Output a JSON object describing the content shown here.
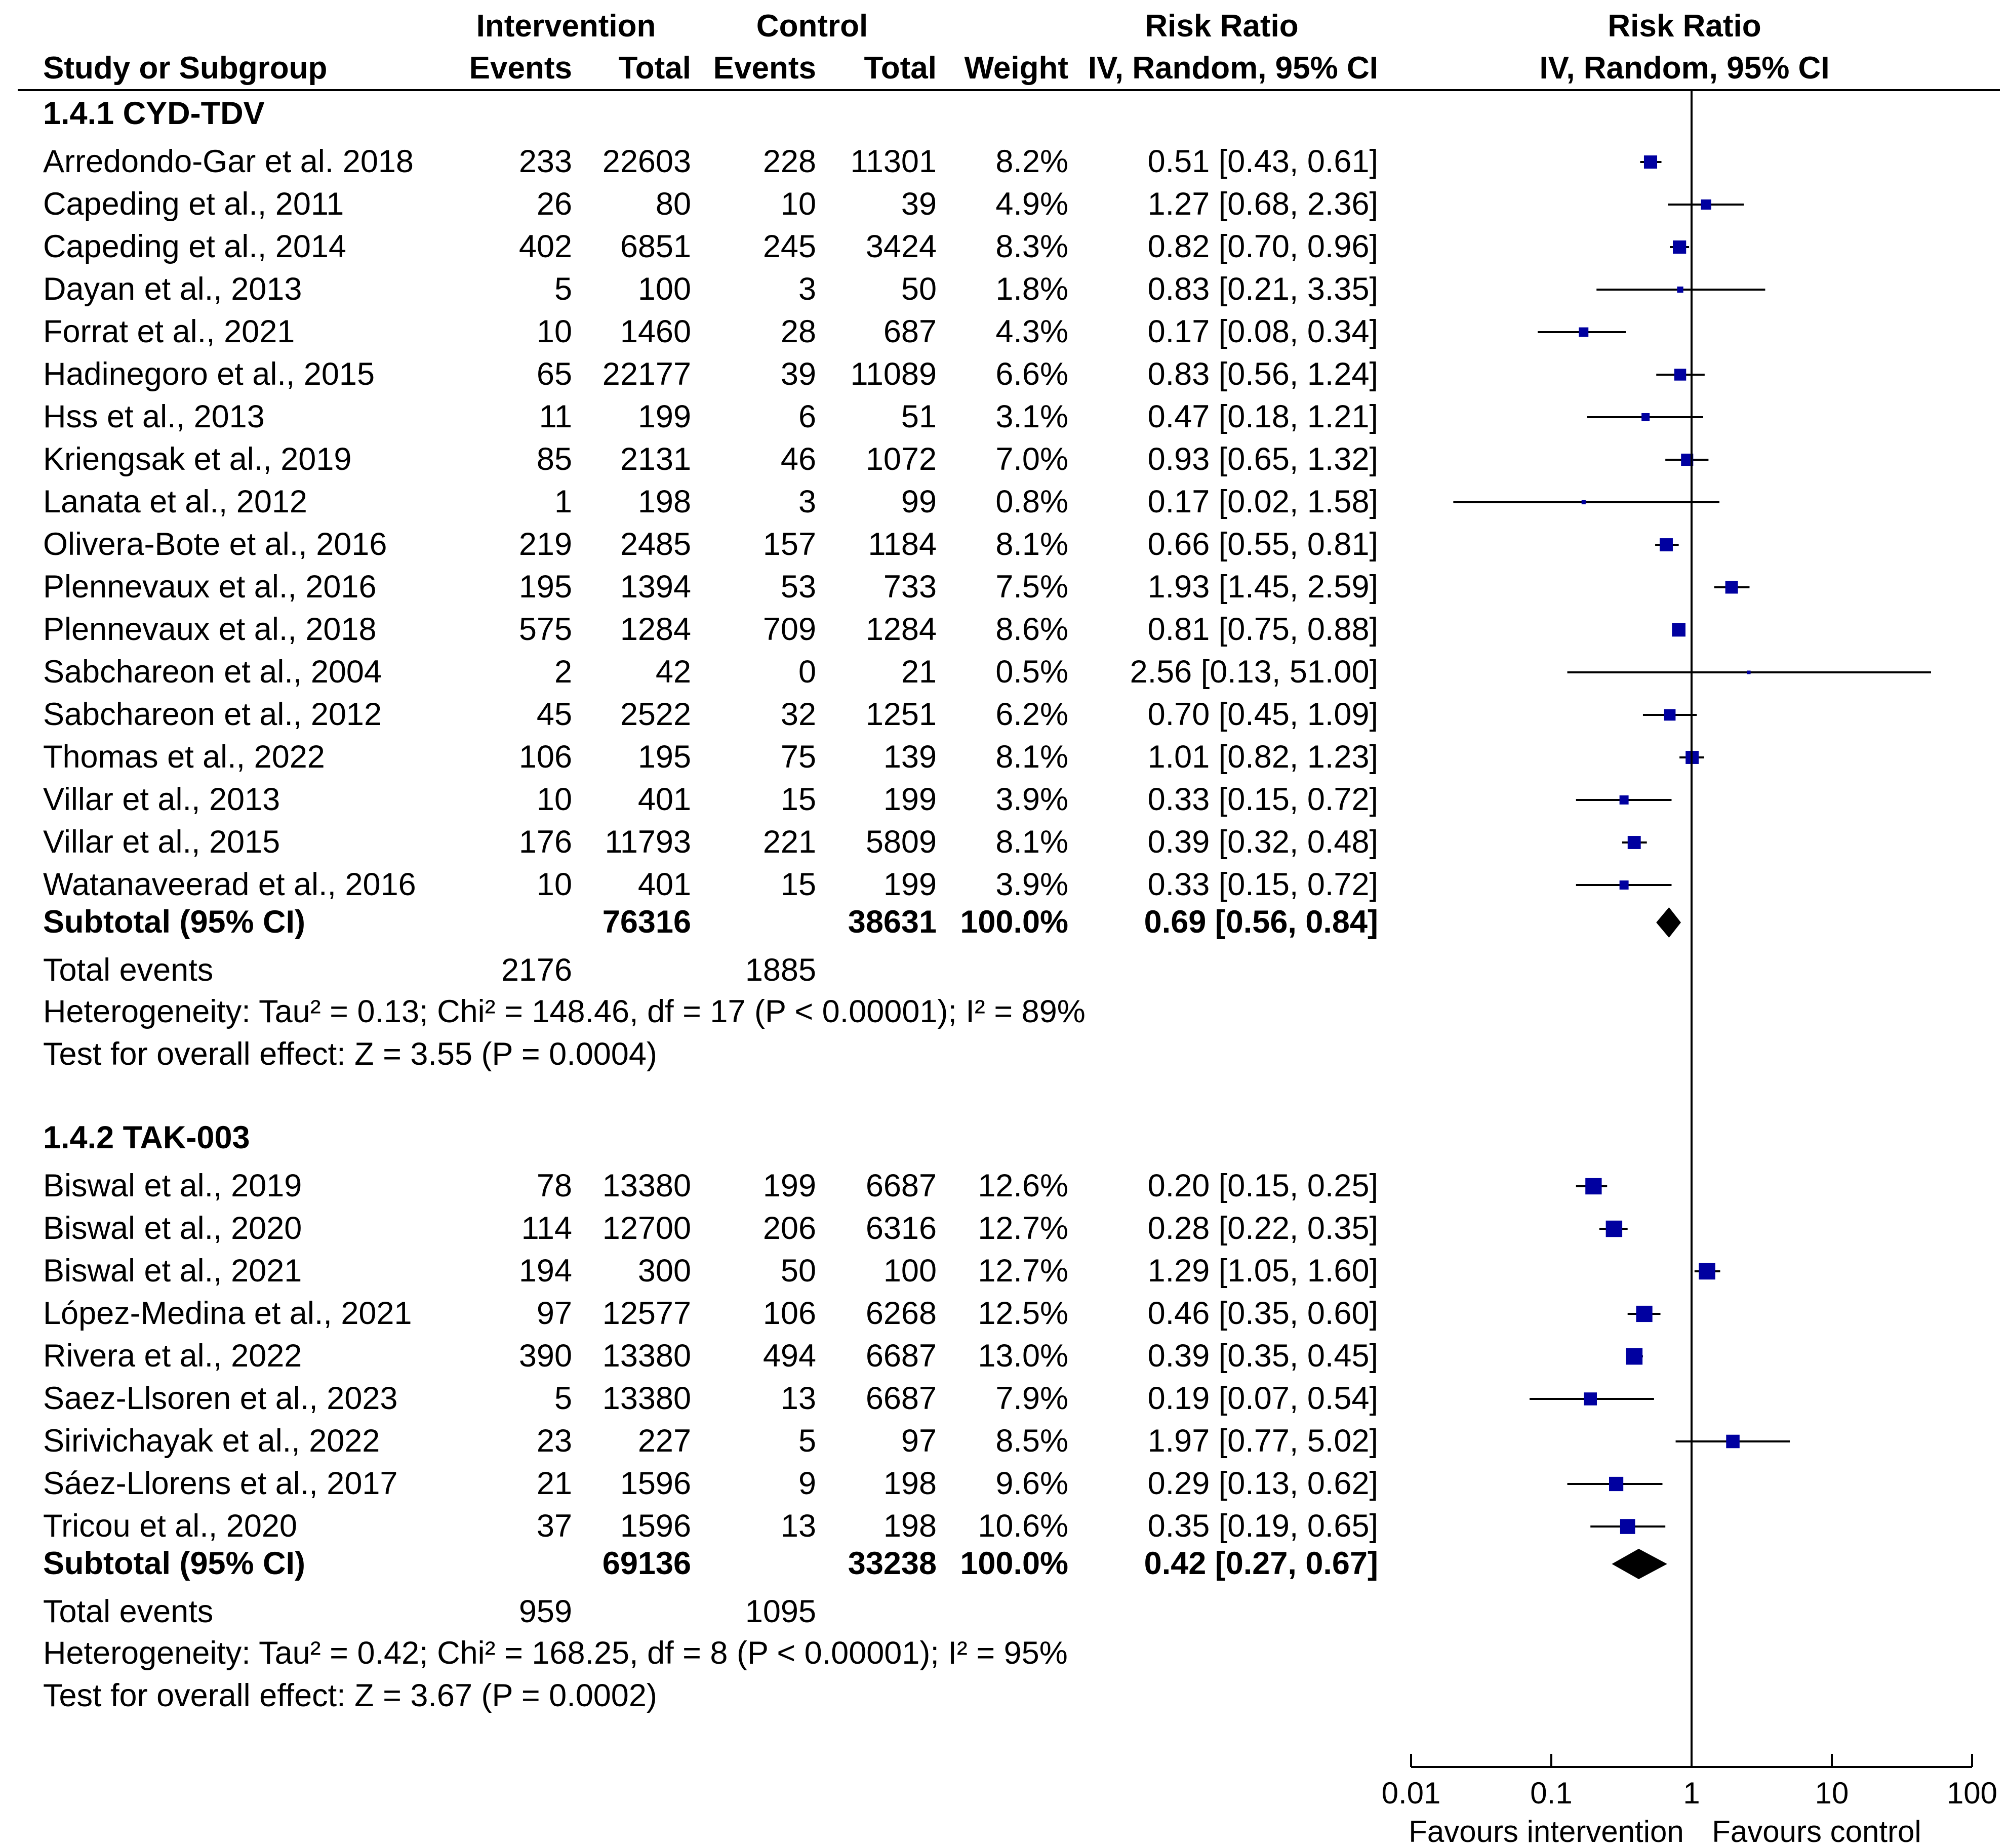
{
  "chart_data": {
    "type": "forest",
    "scale": "log",
    "xlim": [
      0.01,
      100
    ],
    "ticks": [
      0.01,
      0.1,
      1,
      10,
      100
    ],
    "tick_labels": [
      "0.01",
      "0.1",
      "1",
      "10",
      "100"
    ],
    "axis_left_label": "Favours intervention",
    "axis_right_label": "Favours control",
    "headers": {
      "group_intervention": "Intervention",
      "group_control": "Control",
      "risk_ratio": "Risk Ratio",
      "risk_ratio_plot": "Risk Ratio",
      "study": "Study or Subgroup",
      "events": "Events",
      "total": "Total",
      "events2": "Events",
      "total2": "Total",
      "weight": "Weight",
      "method": "IV, Random, 95% CI",
      "method_plot": "IV, Random, 95% CI"
    },
    "subgroups": [
      {
        "title": "1.4.1 CYD-TDV",
        "studies": [
          {
            "name": "Arredondo-Gar et al. 2018",
            "ie": "233",
            "it": "22603",
            "ce": "228",
            "ct": "11301",
            "w": "8.2%",
            "ci": "0.51 [0.43, 0.61]",
            "rr": 0.51,
            "lo": 0.43,
            "hi": 0.61,
            "wt": 8.2
          },
          {
            "name": "Capeding et al., 2011",
            "ie": "26",
            "it": "80",
            "ce": "10",
            "ct": "39",
            "w": "4.9%",
            "ci": "1.27 [0.68, 2.36]",
            "rr": 1.27,
            "lo": 0.68,
            "hi": 2.36,
            "wt": 4.9
          },
          {
            "name": "Capeding et al., 2014",
            "ie": "402",
            "it": "6851",
            "ce": "245",
            "ct": "3424",
            "w": "8.3%",
            "ci": "0.82 [0.70, 0.96]",
            "rr": 0.82,
            "lo": 0.7,
            "hi": 0.96,
            "wt": 8.3
          },
          {
            "name": "Dayan et al., 2013",
            "ie": "5",
            "it": "100",
            "ce": "3",
            "ct": "50",
            "w": "1.8%",
            "ci": "0.83 [0.21, 3.35]",
            "rr": 0.83,
            "lo": 0.21,
            "hi": 3.35,
            "wt": 1.8
          },
          {
            "name": "Forrat et al., 2021",
            "ie": "10",
            "it": "1460",
            "ce": "28",
            "ct": "687",
            "w": "4.3%",
            "ci": "0.17 [0.08, 0.34]",
            "rr": 0.17,
            "lo": 0.08,
            "hi": 0.34,
            "wt": 4.3
          },
          {
            "name": "Hadinegoro et al., 2015",
            "ie": "65",
            "it": "22177",
            "ce": "39",
            "ct": "11089",
            "w": "6.6%",
            "ci": "0.83 [0.56, 1.24]",
            "rr": 0.83,
            "lo": 0.56,
            "hi": 1.24,
            "wt": 6.6
          },
          {
            "name": "Hss et al., 2013",
            "ie": "11",
            "it": "199",
            "ce": "6",
            "ct": "51",
            "w": "3.1%",
            "ci": "0.47 [0.18, 1.21]",
            "rr": 0.47,
            "lo": 0.18,
            "hi": 1.21,
            "wt": 3.1
          },
          {
            "name": "Kriengsak et al., 2019",
            "ie": "85",
            "it": "2131",
            "ce": "46",
            "ct": "1072",
            "w": "7.0%",
            "ci": "0.93 [0.65, 1.32]",
            "rr": 0.93,
            "lo": 0.65,
            "hi": 1.32,
            "wt": 7.0
          },
          {
            "name": "Lanata et al., 2012",
            "ie": "1",
            "it": "198",
            "ce": "3",
            "ct": "99",
            "w": "0.8%",
            "ci": "0.17 [0.02, 1.58]",
            "rr": 0.17,
            "lo": 0.02,
            "hi": 1.58,
            "wt": 0.8
          },
          {
            "name": "Olivera-Bote et al., 2016",
            "ie": "219",
            "it": "2485",
            "ce": "157",
            "ct": "1184",
            "w": "8.1%",
            "ci": "0.66 [0.55, 0.81]",
            "rr": 0.66,
            "lo": 0.55,
            "hi": 0.81,
            "wt": 8.1
          },
          {
            "name": "Plennevaux et al., 2016",
            "ie": "195",
            "it": "1394",
            "ce": "53",
            "ct": "733",
            "w": "7.5%",
            "ci": "1.93 [1.45, 2.59]",
            "rr": 1.93,
            "lo": 1.45,
            "hi": 2.59,
            "wt": 7.5
          },
          {
            "name": "Plennevaux et al., 2018",
            "ie": "575",
            "it": "1284",
            "ce": "709",
            "ct": "1284",
            "w": "8.6%",
            "ci": "0.81 [0.75, 0.88]",
            "rr": 0.81,
            "lo": 0.75,
            "hi": 0.88,
            "wt": 8.6
          },
          {
            "name": "Sabchareon et al., 2004",
            "ie": "2",
            "it": "42",
            "ce": "0",
            "ct": "21",
            "w": "0.5%",
            "ci": "2.56 [0.13, 51.00]",
            "rr": 2.56,
            "lo": 0.13,
            "hi": 51.0,
            "wt": 0.5
          },
          {
            "name": "Sabchareon et al., 2012",
            "ie": "45",
            "it": "2522",
            "ce": "32",
            "ct": "1251",
            "w": "6.2%",
            "ci": "0.70 [0.45, 1.09]",
            "rr": 0.7,
            "lo": 0.45,
            "hi": 1.09,
            "wt": 6.2
          },
          {
            "name": "Thomas et al., 2022",
            "ie": "106",
            "it": "195",
            "ce": "75",
            "ct": "139",
            "w": "8.1%",
            "ci": "1.01 [0.82, 1.23]",
            "rr": 1.01,
            "lo": 0.82,
            "hi": 1.23,
            "wt": 8.1
          },
          {
            "name": "Villar et al., 2013",
            "ie": "10",
            "it": "401",
            "ce": "15",
            "ct": "199",
            "w": "3.9%",
            "ci": "0.33 [0.15, 0.72]",
            "rr": 0.33,
            "lo": 0.15,
            "hi": 0.72,
            "wt": 3.9
          },
          {
            "name": "Villar et al., 2015",
            "ie": "176",
            "it": "11793",
            "ce": "221",
            "ct": "5809",
            "w": "8.1%",
            "ci": "0.39 [0.32, 0.48]",
            "rr": 0.39,
            "lo": 0.32,
            "hi": 0.48,
            "wt": 8.1
          },
          {
            "name": "Watanaveerad et al., 2016",
            "ie": "10",
            "it": "401",
            "ce": "15",
            "ct": "199",
            "w": "3.9%",
            "ci": "0.33 [0.15, 0.72]",
            "rr": 0.33,
            "lo": 0.15,
            "hi": 0.72,
            "wt": 3.9
          }
        ],
        "subtotal": {
          "label": "Subtotal (95% CI)",
          "it": "76316",
          "ct": "38631",
          "w": "100.0%",
          "ci": "0.69 [0.56, 0.84]",
          "rr": 0.69,
          "lo": 0.56,
          "hi": 0.84
        },
        "total_events": {
          "label": "Total events",
          "ie": "2176",
          "ce": "1885"
        },
        "heterogeneity": "Heterogeneity: Tau² = 0.13; Chi² = 148.46, df = 17 (P < 0.00001); I² = 89%",
        "overall": "Test for overall effect: Z = 3.55 (P = 0.0004)"
      },
      {
        "title": "1.4.2 TAK-003",
        "studies": [
          {
            "name": "Biswal et al., 2019",
            "ie": "78",
            "it": "13380",
            "ce": "199",
            "ct": "6687",
            "w": "12.6%",
            "ci": "0.20 [0.15, 0.25]",
            "rr": 0.2,
            "lo": 0.15,
            "hi": 0.25,
            "wt": 12.6
          },
          {
            "name": "Biswal et al., 2020",
            "ie": "114",
            "it": "12700",
            "ce": "206",
            "ct": "6316",
            "w": "12.7%",
            "ci": "0.28 [0.22, 0.35]",
            "rr": 0.28,
            "lo": 0.22,
            "hi": 0.35,
            "wt": 12.7
          },
          {
            "name": "Biswal et al., 2021",
            "ie": "194",
            "it": "300",
            "ce": "50",
            "ct": "100",
            "w": "12.7%",
            "ci": "1.29 [1.05, 1.60]",
            "rr": 1.29,
            "lo": 1.05,
            "hi": 1.6,
            "wt": 12.7
          },
          {
            "name": "López-Medina et al., 2021",
            "ie": "97",
            "it": "12577",
            "ce": "106",
            "ct": "6268",
            "w": "12.5%",
            "ci": "0.46 [0.35, 0.60]",
            "rr": 0.46,
            "lo": 0.35,
            "hi": 0.6,
            "wt": 12.5
          },
          {
            "name": "Rivera et al., 2022",
            "ie": "390",
            "it": "13380",
            "ce": "494",
            "ct": "6687",
            "w": "13.0%",
            "ci": "0.39 [0.35, 0.45]",
            "rr": 0.39,
            "lo": 0.35,
            "hi": 0.45,
            "wt": 13.0
          },
          {
            "name": "Saez-Llsoren et al., 2023",
            "ie": "5",
            "it": "13380",
            "ce": "13",
            "ct": "6687",
            "w": "7.9%",
            "ci": "0.19 [0.07, 0.54]",
            "rr": 0.19,
            "lo": 0.07,
            "hi": 0.54,
            "wt": 7.9
          },
          {
            "name": "Sirivichayak et al., 2022",
            "ie": "23",
            "it": "227",
            "ce": "5",
            "ct": "97",
            "w": "8.5%",
            "ci": "1.97 [0.77, 5.02]",
            "rr": 1.97,
            "lo": 0.77,
            "hi": 5.02,
            "wt": 8.5
          },
          {
            "name": "Sáez-Llorens et al., 2017",
            "ie": "21",
            "it": "1596",
            "ce": "9",
            "ct": "198",
            "w": "9.6%",
            "ci": "0.29 [0.13, 0.62]",
            "rr": 0.29,
            "lo": 0.13,
            "hi": 0.62,
            "wt": 9.6
          },
          {
            "name": "Tricou et al., 2020",
            "ie": "37",
            "it": "1596",
            "ce": "13",
            "ct": "198",
            "w": "10.6%",
            "ci": "0.35 [0.19, 0.65]",
            "rr": 0.35,
            "lo": 0.19,
            "hi": 0.65,
            "wt": 10.6
          }
        ],
        "subtotal": {
          "label": "Subtotal (95% CI)",
          "it": "69136",
          "ct": "33238",
          "w": "100.0%",
          "ci": "0.42 [0.27, 0.67]",
          "rr": 0.42,
          "lo": 0.27,
          "hi": 0.67
        },
        "total_events": {
          "label": "Total events",
          "ie": "959",
          "ce": "1095"
        },
        "heterogeneity": "Heterogeneity: Tau² = 0.42; Chi² = 168.25, df = 8 (P < 0.00001); I² = 95%",
        "overall": "Test for overall effect: Z = 3.67 (P = 0.0002)"
      }
    ]
  }
}
